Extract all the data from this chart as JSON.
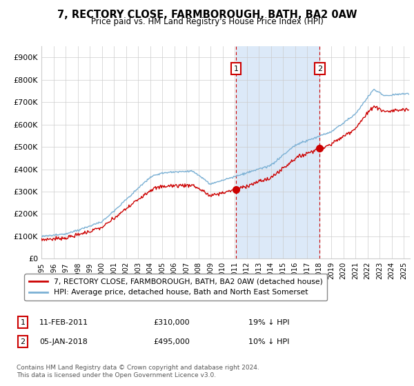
{
  "title": "7, RECTORY CLOSE, FARMBOROUGH, BATH, BA2 0AW",
  "subtitle": "Price paid vs. HM Land Registry's House Price Index (HPI)",
  "legend_label_red": "7, RECTORY CLOSE, FARMBOROUGH, BATH, BA2 0AW (detached house)",
  "legend_label_blue": "HPI: Average price, detached house, Bath and North East Somerset",
  "annotation1_label": "1",
  "annotation1_date": "11-FEB-2011",
  "annotation1_price": "£310,000",
  "annotation1_hpi": "19% ↓ HPI",
  "annotation1_year": 2011.1,
  "annotation1_value": 310000,
  "annotation2_label": "2",
  "annotation2_date": "05-JAN-2018",
  "annotation2_price": "£495,000",
  "annotation2_hpi": "10% ↓ HPI",
  "annotation2_year": 2018.04,
  "annotation2_value": 495000,
  "footnote": "Contains HM Land Registry data © Crown copyright and database right 2024.\nThis data is licensed under the Open Government Licence v3.0.",
  "ylim": [
    0,
    950000
  ],
  "yticks": [
    0,
    100000,
    200000,
    300000,
    400000,
    500000,
    600000,
    700000,
    800000,
    900000
  ],
  "ytick_labels": [
    "£0",
    "£100K",
    "£200K",
    "£300K",
    "£400K",
    "£500K",
    "£600K",
    "£700K",
    "£800K",
    "£900K"
  ],
  "background_color": "#ffffff",
  "plot_bg_color": "#ffffff",
  "highlight_color": "#dce9f8",
  "red_color": "#cc0000",
  "blue_color": "#7ab0d4",
  "grid_color": "#cccccc",
  "xlim_start": 1995,
  "xlim_end": 2025.5
}
